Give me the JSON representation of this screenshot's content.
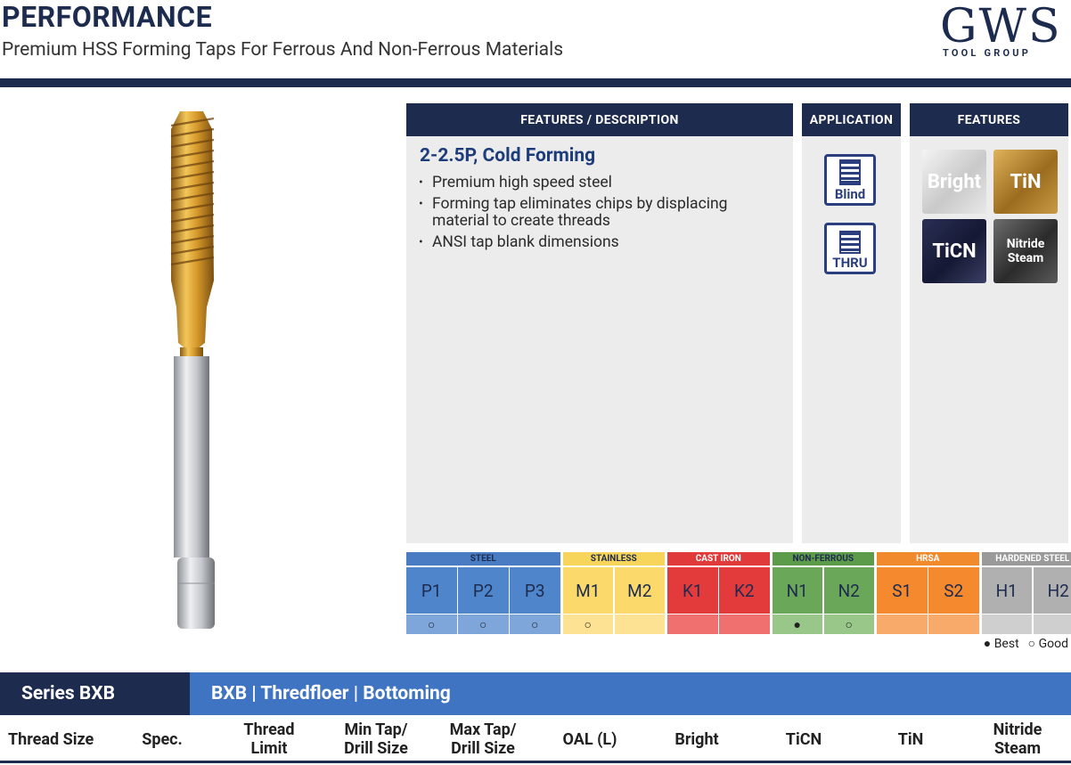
{
  "header": {
    "title": "PERFORMANCE",
    "subtitle": "Premium HSS Forming Taps For Ferrous And Non-Ferrous Materials",
    "logo": {
      "name": "GWS",
      "tagline": "TOOL GROUP"
    }
  },
  "panels": {
    "description": {
      "heading": "FEATURES / DESCRIPTION",
      "title": "2-2.5P, Cold Forming",
      "bullets": [
        "Premium high speed steel",
        "Forming tap eliminates chips by displacing material to create threads",
        "ANSI tap blank dimensions"
      ]
    },
    "application": {
      "heading": "APPLICATION",
      "items": [
        "Blind",
        "THRU"
      ]
    },
    "features": {
      "heading": "FEATURES",
      "items": [
        "Bright",
        "TiN",
        "TiCN",
        "Nitride Steam"
      ]
    }
  },
  "materials": {
    "groups": [
      {
        "name": "STEEL",
        "codes": [
          "P1",
          "P2",
          "P3"
        ],
        "ratings": [
          "○",
          "○",
          "○"
        ]
      },
      {
        "name": "STAINLESS",
        "codes": [
          "M1",
          "M2"
        ],
        "ratings": [
          "○",
          null
        ]
      },
      {
        "name": "CAST IRON",
        "codes": [
          "K1",
          "K2"
        ],
        "ratings": [
          null,
          null
        ]
      },
      {
        "name": "NON-FERROUS",
        "codes": [
          "N1",
          "N2"
        ],
        "ratings": [
          "●",
          "○"
        ]
      },
      {
        "name": "HRSA",
        "codes": [
          "S1",
          "S2"
        ],
        "ratings": [
          null,
          null
        ]
      },
      {
        "name": "HARDENED STEEL",
        "codes": [
          "H1",
          "H2"
        ],
        "ratings": [
          null,
          null
        ]
      }
    ],
    "legend": {
      "best": "● Best",
      "good": "○ Good"
    }
  },
  "series": {
    "label": "Series BXB",
    "description": "BXB | Thredfloer | Bottoming"
  },
  "table": {
    "columns": [
      "Thread Size",
      "Spec.",
      "Thread Limit",
      "Min Tap/ Drill Size",
      "Max Tap/ Drill Size",
      "OAL (L)",
      "Bright",
      "TiCN",
      "TiN",
      "Nitride Steam"
    ]
  }
}
